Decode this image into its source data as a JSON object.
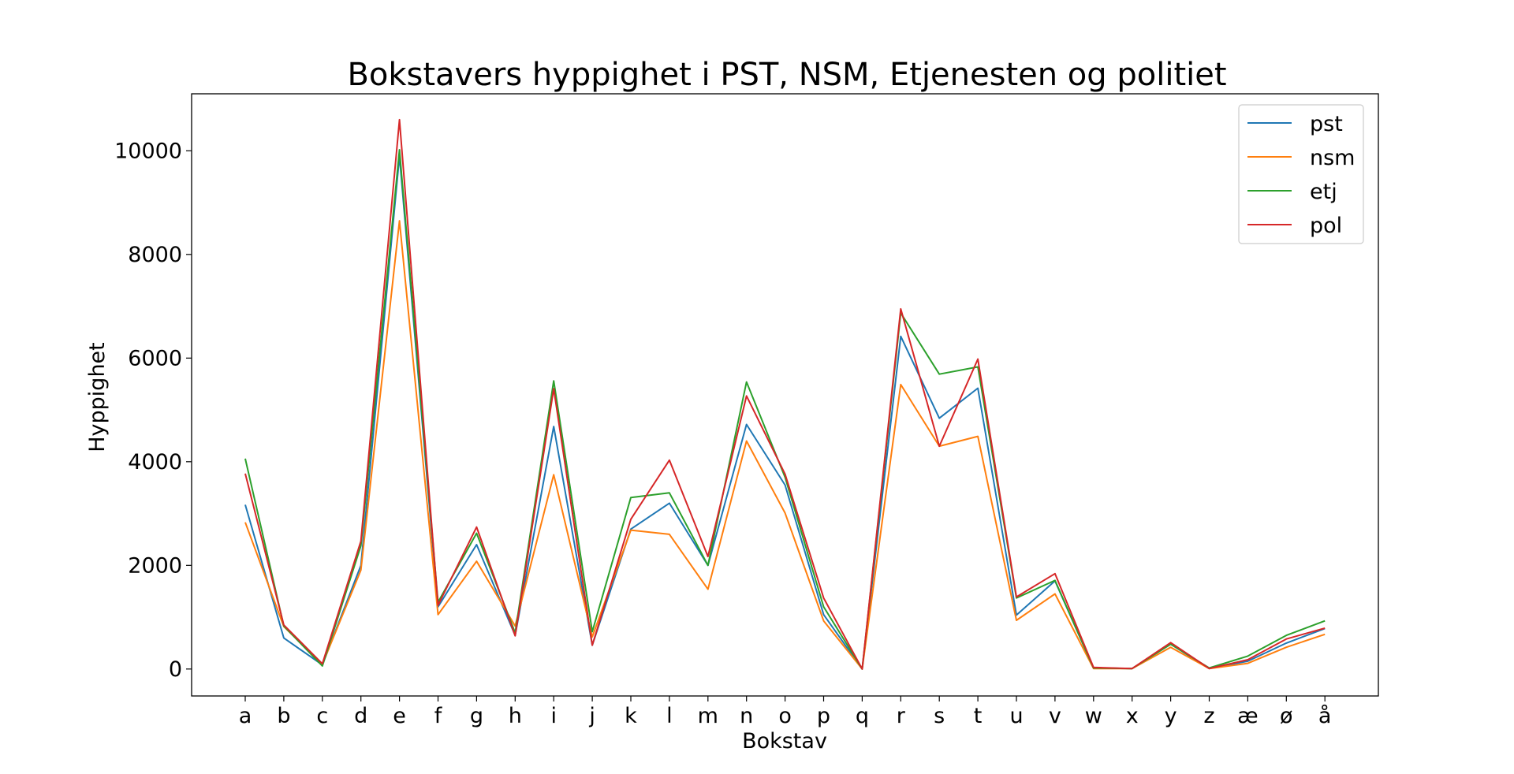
{
  "chart_data": {
    "type": "line",
    "title": "Bokstavers hyppighet i PST, NSM, Etjenesten og politiet",
    "xlabel": "Bokstav",
    "ylabel": "Hyppighet",
    "categories": [
      "a",
      "b",
      "c",
      "d",
      "e",
      "f",
      "g",
      "h",
      "i",
      "j",
      "k",
      "l",
      "m",
      "n",
      "o",
      "p",
      "q",
      "r",
      "s",
      "t",
      "u",
      "v",
      "w",
      "x",
      "y",
      "z",
      "æ",
      "ø",
      "å"
    ],
    "ylim": [
      -520,
      11100
    ],
    "yticks": [
      "0",
      "2000",
      "4000",
      "6000",
      "8000",
      "10000"
    ],
    "grid": false,
    "legend_position": "top-right",
    "series": [
      {
        "name": "pst",
        "color": "#1f77b4",
        "values": [
          3170,
          600,
          80,
          2000,
          9900,
          1200,
          2400,
          650,
          4680,
          460,
          2700,
          3200,
          2000,
          4720,
          3550,
          1050,
          0,
          6420,
          4840,
          5420,
          1040,
          1700,
          20,
          10,
          480,
          10,
          150,
          500,
          780
        ]
      },
      {
        "name": "nsm",
        "color": "#ff7f0e",
        "values": [
          2830,
          820,
          90,
          1910,
          8650,
          1050,
          2080,
          830,
          3750,
          620,
          2680,
          2600,
          1540,
          4400,
          3010,
          930,
          0,
          5490,
          4300,
          4490,
          940,
          1450,
          10,
          10,
          420,
          10,
          110,
          420,
          670
        ]
      },
      {
        "name": "etj",
        "color": "#2ca02c",
        "values": [
          4060,
          830,
          60,
          2380,
          10020,
          1290,
          2620,
          700,
          5560,
          720,
          3310,
          3400,
          2000,
          5540,
          3700,
          1200,
          0,
          6870,
          5690,
          5830,
          1370,
          1710,
          20,
          10,
          480,
          20,
          250,
          650,
          930
        ]
      },
      {
        "name": "pol",
        "color": "#d62728",
        "values": [
          3770,
          850,
          100,
          2470,
          10600,
          1230,
          2740,
          640,
          5410,
          460,
          2890,
          4030,
          2170,
          5270,
          3760,
          1370,
          0,
          6950,
          4300,
          5980,
          1390,
          1840,
          30,
          10,
          510,
          10,
          180,
          580,
          790
        ]
      }
    ]
  }
}
